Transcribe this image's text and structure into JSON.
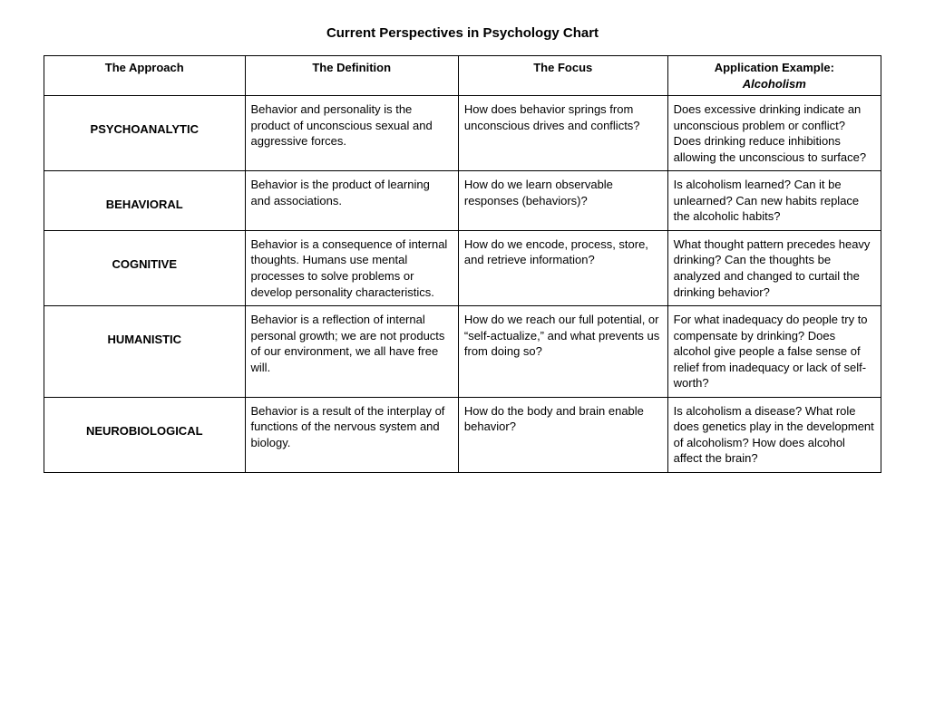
{
  "title": "Current Perspectives in Psychology Chart",
  "columns": {
    "c1": "The Approach",
    "c2": "The Definition",
    "c3": "The Focus",
    "c4_line1": "Application Example:",
    "c4_line2": "Alcoholism"
  },
  "rows": [
    {
      "approach": "PSYCHOANALYTIC",
      "definition": "Behavior and personality is the product of unconscious sexual and aggressive forces.",
      "focus": "How does behavior springs from unconscious drives and conflicts?",
      "application": "Does excessive drinking indicate an unconscious problem or conflict?  Does drinking reduce inhibitions allowing the unconscious to surface?"
    },
    {
      "approach": "BEHAVIORAL",
      "definition": "Behavior is the product of learning and associations.",
      "focus": "How do we learn observable responses (behaviors)?",
      "application": "Is alcoholism learned?  Can it be unlearned?  Can new habits replace the alcoholic habits?"
    },
    {
      "approach": "COGNITIVE",
      "definition": "Behavior is a consequence of internal thoughts.  Humans use mental processes to solve problems or develop personality characteristics.",
      "focus": "How do we encode, process, store, and retrieve information?",
      "application": "What thought pattern precedes heavy drinking?  Can the thoughts be analyzed and changed to curtail the drinking behavior?"
    },
    {
      "approach": "HUMANISTIC",
      "definition": "Behavior is a reflection of internal personal growth; we are not products of our environment, we all have free will.",
      "focus": "How do we reach our full potential, or “self-actualize,” and what prevents us from doing so?",
      "application": "For what inadequacy do people try to compensate by drinking?  Does alcohol give people a false sense of relief from inadequacy or lack of self-worth?"
    },
    {
      "approach": "NEUROBIOLOGICAL",
      "definition": "Behavior is a result of the interplay of functions of the nervous system and biology.",
      "focus": "How do the body and brain enable behavior?",
      "application": "Is alcoholism a disease?  What role does genetics play in the development of alcoholism?  How does alcohol affect the brain?"
    }
  ]
}
